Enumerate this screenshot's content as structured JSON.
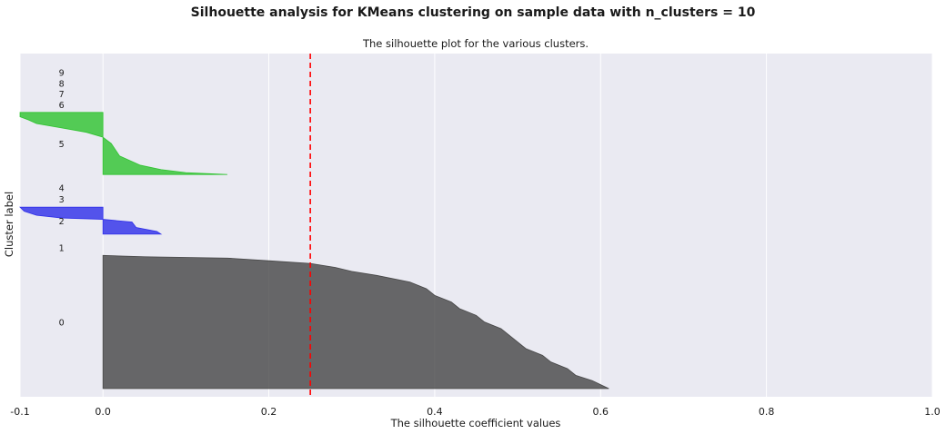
{
  "figure": {
    "suptitle": "Silhouette analysis for KMeans clustering on sample data with n_clusters = 10"
  },
  "chart_data": {
    "type": "area",
    "title": "The silhouette plot for the various clusters.",
    "xlabel": "The silhouette coefficient values",
    "ylabel": "Cluster label",
    "xlim": [
      -0.1,
      1.0
    ],
    "ylim": [
      0,
      420
    ],
    "xticks": [
      -0.1,
      0.0,
      0.2,
      0.4,
      0.6,
      0.8,
      1.0
    ],
    "xtick_labels": [
      "-0.1",
      "0.0",
      "0.2",
      "0.4",
      "0.6",
      "0.8",
      "1.0"
    ],
    "grid": true,
    "average_silhouette_score": 0.25,
    "average_line_color": "#ff0000",
    "colors": {
      "background": "#eaeaf2",
      "grid": "#ffffff"
    },
    "clusters": [
      {
        "label": "0",
        "color": "#3a3a3a",
        "y_lower": 10,
        "y_upper": 173,
        "profile": [
          [
            0,
            0.61
          ],
          [
            0.03,
            0.6
          ],
          [
            0.06,
            0.59
          ],
          [
            0.1,
            0.57
          ],
          [
            0.15,
            0.56
          ],
          [
            0.2,
            0.54
          ],
          [
            0.25,
            0.53
          ],
          [
            0.3,
            0.51
          ],
          [
            0.35,
            0.5
          ],
          [
            0.4,
            0.49
          ],
          [
            0.45,
            0.48
          ],
          [
            0.5,
            0.46
          ],
          [
            0.55,
            0.45
          ],
          [
            0.6,
            0.43
          ],
          [
            0.65,
            0.42
          ],
          [
            0.7,
            0.4
          ],
          [
            0.75,
            0.39
          ],
          [
            0.8,
            0.37
          ],
          [
            0.85,
            0.33
          ],
          [
            0.88,
            0.3
          ],
          [
            0.91,
            0.28
          ],
          [
            0.94,
            0.25
          ],
          [
            0.96,
            0.2
          ],
          [
            0.98,
            0.15
          ],
          [
            0.99,
            0.05
          ],
          [
            1,
            0.0
          ]
        ]
      },
      {
        "label": "1",
        "color": "#0000e0",
        "y_lower": 183,
        "y_upper": 183,
        "profile": []
      },
      {
        "label": "2",
        "color": "#2020e8",
        "y_lower": 199,
        "y_upper": 232,
        "profile": [
          [
            0,
            0.07
          ],
          [
            0.1,
            0.065
          ],
          [
            0.25,
            0.04
          ],
          [
            0.45,
            0.035
          ],
          [
            0.55,
            0.0
          ],
          [
            0.6,
            -0.05
          ],
          [
            0.7,
            -0.08
          ],
          [
            0.85,
            -0.095
          ],
          [
            1,
            -0.1
          ]
        ]
      },
      {
        "label": "3",
        "color": "#2020e8",
        "y_lower": 242,
        "y_upper": 242,
        "profile": []
      },
      {
        "label": "4",
        "color": "#30c030",
        "y_lower": 256,
        "y_upper": 256,
        "profile": []
      },
      {
        "label": "5",
        "color": "#20c020",
        "y_lower": 272,
        "y_upper": 348,
        "profile": [
          [
            0,
            0.15
          ],
          [
            0.03,
            0.1
          ],
          [
            0.08,
            0.07
          ],
          [
            0.15,
            0.045
          ],
          [
            0.3,
            0.02
          ],
          [
            0.5,
            0.01
          ],
          [
            0.6,
            0.0
          ],
          [
            0.68,
            -0.02
          ],
          [
            0.75,
            -0.05
          ],
          [
            0.82,
            -0.08
          ],
          [
            0.88,
            -0.09
          ],
          [
            0.93,
            -0.1
          ],
          [
            1,
            -0.1
          ]
        ]
      },
      {
        "label": "6",
        "color": "#20c020",
        "y_lower": 358,
        "y_upper": 358,
        "profile": []
      },
      {
        "label": "7",
        "color": "#20c020",
        "y_lower": 371,
        "y_upper": 371,
        "profile": []
      },
      {
        "label": "8",
        "color": "#20c020",
        "y_lower": 384,
        "y_upper": 384,
        "profile": []
      },
      {
        "label": "9",
        "color": "#20c020",
        "y_lower": 397,
        "y_upper": 397,
        "profile": []
      }
    ]
  }
}
